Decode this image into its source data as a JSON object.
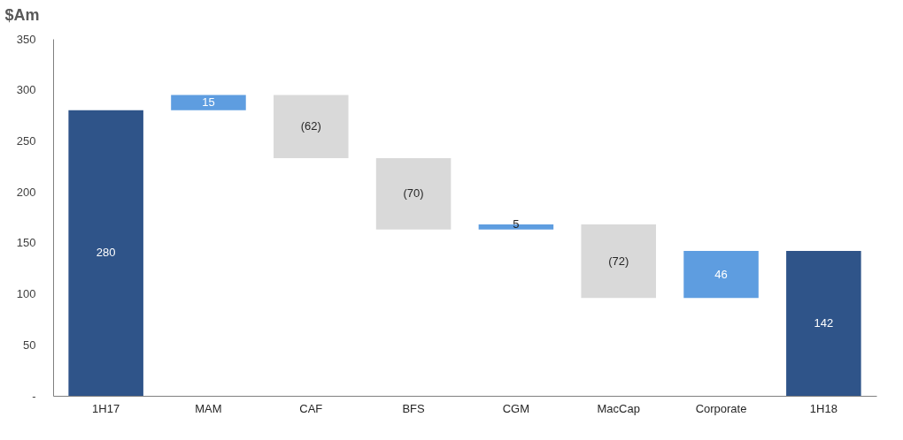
{
  "chart_data": {
    "type": "bar",
    "ylabel": "$Am",
    "categories": [
      "1H17",
      "MAM",
      "CAF",
      "BFS",
      "CGM",
      "MacCap",
      "Corporate",
      "1H18"
    ],
    "values": [
      280,
      15,
      -62,
      -70,
      5,
      -72,
      46,
      142
    ],
    "base": [
      0,
      280,
      295,
      233,
      163,
      168,
      96,
      0
    ],
    "colors": [
      "#2f5489",
      "#5e9de0",
      "#d9d9d9",
      "#d9d9d9",
      "#5e9de0",
      "#d9d9d9",
      "#5e9de0",
      "#2f5489"
    ],
    "value_labels": [
      "280",
      "15",
      "(62)",
      "(70)",
      "5",
      "(72)",
      "46",
      "142"
    ],
    "ylim": [
      0,
      350
    ],
    "yticks": [
      {
        "value": 0,
        "label": "-"
      },
      50,
      100,
      150,
      200,
      250,
      300,
      350
    ],
    "grid": false
  }
}
